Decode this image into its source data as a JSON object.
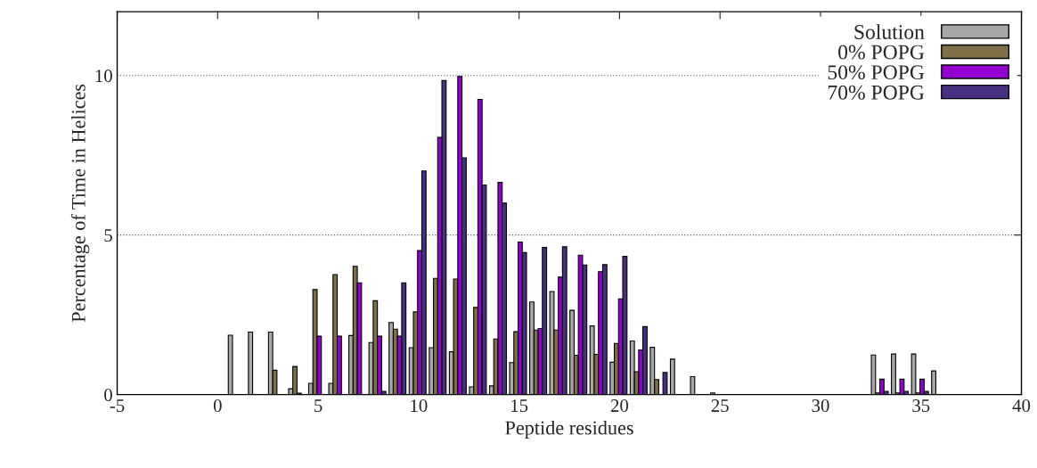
{
  "chart_data": {
    "type": "bar",
    "xlabel": "Peptide residues",
    "ylabel": "Percentage of Time in Helices",
    "x": [
      1,
      2,
      3,
      4,
      5,
      6,
      7,
      8,
      9,
      10,
      11,
      12,
      13,
      14,
      15,
      16,
      17,
      18,
      19,
      20,
      21,
      22,
      23,
      24,
      25,
      26,
      27,
      28,
      29,
      30,
      31,
      32,
      33,
      34,
      35,
      36
    ],
    "series": [
      {
        "name": "Solution",
        "color": "#a8a8a8",
        "values": [
          1.86,
          1.96,
          1.96,
          0.18,
          0.35,
          0.35,
          1.85,
          1.63,
          2.26,
          1.47,
          1.47,
          1.34,
          0.24,
          0.27,
          1.0,
          2.9,
          3.23,
          2.64,
          2.15,
          1.01,
          1.68,
          1.48,
          1.11,
          0.56,
          0.05,
          null,
          null,
          null,
          null,
          null,
          null,
          null,
          1.24,
          1.27,
          1.27,
          0.74
        ]
      },
      {
        "name": "0% POPG",
        "color": "#7f7048",
        "values": [
          null,
          null,
          0.76,
          0.88,
          3.29,
          3.76,
          4.02,
          2.94,
          2.05,
          2.59,
          3.64,
          3.62,
          2.73,
          1.74,
          1.97,
          2.02,
          2.02,
          1.23,
          1.26,
          1.6,
          0.71,
          0.47,
          null,
          null,
          null,
          null,
          null,
          null,
          null,
          null,
          null,
          null,
          0.05,
          0.05,
          0.05,
          null
        ]
      },
      {
        "name": "50% POPG",
        "color": "#9400d3",
        "values": [
          null,
          null,
          null,
          0.04,
          1.83,
          1.83,
          3.5,
          1.83,
          1.83,
          4.51,
          8.06,
          9.97,
          9.25,
          6.65,
          4.78,
          2.07,
          3.68,
          4.37,
          3.85,
          3.0,
          1.4,
          null,
          null,
          null,
          null,
          null,
          null,
          null,
          null,
          null,
          null,
          null,
          0.48,
          0.48,
          0.48,
          null
        ]
      },
      {
        "name": "70% POPG",
        "color": "#483080",
        "values": [
          null,
          null,
          null,
          null,
          null,
          null,
          null,
          0.1,
          3.5,
          7.01,
          9.84,
          7.42,
          6.57,
          6.0,
          4.45,
          4.61,
          4.63,
          4.06,
          4.07,
          4.33,
          2.13,
          0.69,
          null,
          null,
          null,
          null,
          null,
          null,
          null,
          null,
          null,
          null,
          0.1,
          0.1,
          0.1,
          null
        ]
      }
    ],
    "xlim": [
      -5,
      40
    ],
    "xticks": [
      -5,
      0,
      5,
      10,
      15,
      20,
      25,
      30,
      35,
      40
    ],
    "ylim": [
      0,
      12
    ],
    "yticks": [
      0,
      5,
      10
    ],
    "grid": "y",
    "legend": "top right"
  }
}
